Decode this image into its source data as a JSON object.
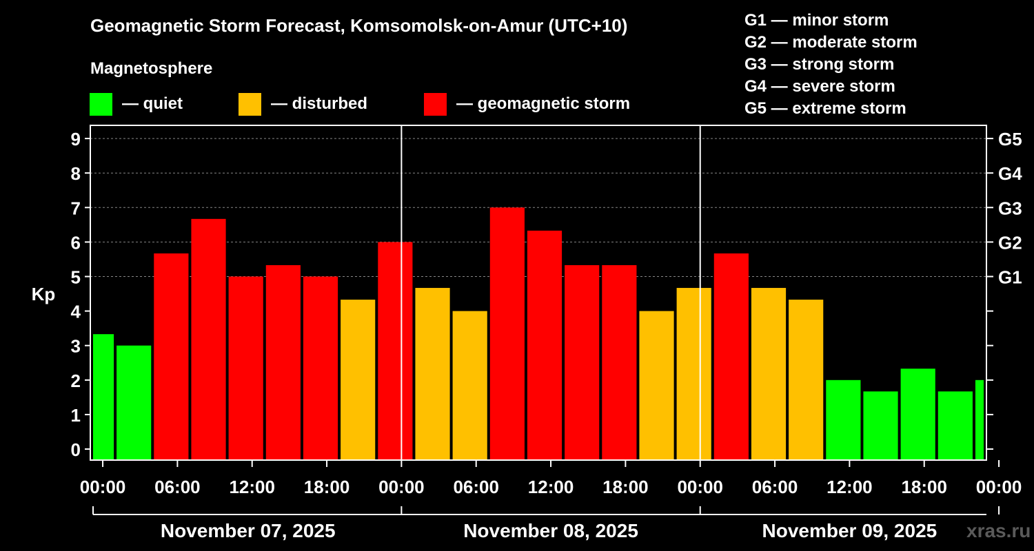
{
  "title": "Geomagnetic Storm Forecast, Komsomolsk-on-Amur (UTC+10)",
  "legend": {
    "heading": "Magnetosphere",
    "items": [
      {
        "label": "— quiet",
        "color": "#00ff00"
      },
      {
        "label": "— disturbed",
        "color": "#ffc000"
      },
      {
        "label": "— geomagnetic storm",
        "color": "#ff0000"
      }
    ]
  },
  "g_legend": [
    "G1 — minor storm",
    "G2 — moderate storm",
    "G3 — strong storm",
    "G4 — severe storm",
    "G5 — extreme storm"
  ],
  "watermark": "xras.ru",
  "chart_data": {
    "type": "bar",
    "ylabel": "Kp",
    "ylim": [
      0,
      9
    ],
    "yticks": [
      "0",
      "1",
      "2",
      "3",
      "4",
      "5",
      "6",
      "7",
      "8",
      "9"
    ],
    "right_ticks": [
      {
        "kp": 5,
        "label": "G1"
      },
      {
        "kp": 6,
        "label": "G2"
      },
      {
        "kp": 7,
        "label": "G3"
      },
      {
        "kp": 8,
        "label": "G4"
      },
      {
        "kp": 9,
        "label": "G5"
      }
    ],
    "xticks": [
      "00:00",
      "06:00",
      "12:00",
      "18:00",
      "00:00",
      "06:00",
      "12:00",
      "18:00",
      "00:00",
      "06:00",
      "12:00",
      "18:00",
      "00:00"
    ],
    "days": [
      "November 07, 2025",
      "November 08, 2025",
      "November 09, 2025"
    ],
    "grid": true,
    "bar_start_hours": [
      -2,
      1,
      4,
      7,
      10,
      13,
      16,
      19,
      22,
      25,
      28,
      31,
      34,
      37,
      40,
      43,
      46,
      49,
      52,
      55,
      58,
      61,
      64,
      67,
      70
    ],
    "values": [
      3.33,
      3.0,
      5.67,
      6.67,
      5.0,
      5.33,
      5.0,
      4.33,
      6.0,
      4.67,
      4.0,
      7.0,
      6.33,
      5.33,
      5.33,
      4.0,
      4.67,
      5.67,
      4.67,
      4.33,
      2.0,
      1.67,
      2.33,
      1.67,
      2.0
    ],
    "thresholds": {
      "disturbed": 4,
      "storm": 5
    },
    "colors": {
      "quiet": "#00ff00",
      "disturbed": "#ffc000",
      "storm": "#ff0000"
    }
  }
}
